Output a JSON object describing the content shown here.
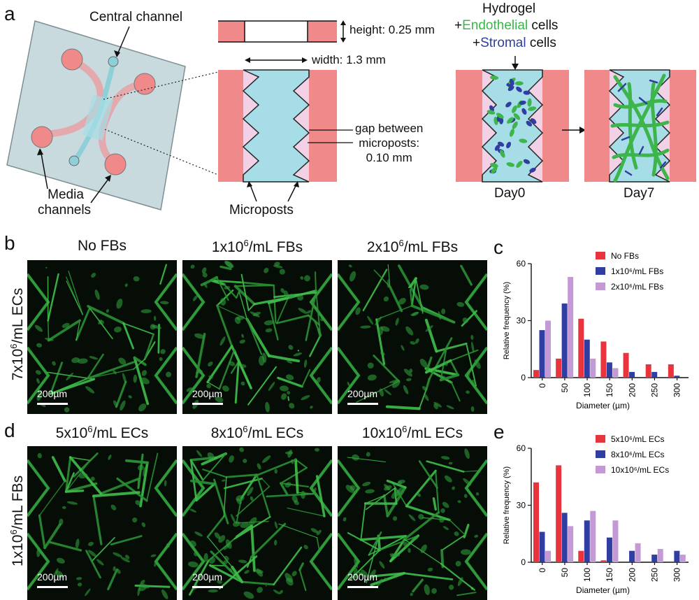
{
  "panel_a": {
    "letter": "a",
    "central_channel": "Central channel",
    "media_channels_line1": "Media",
    "media_channels_line2": "channels",
    "height": "height: 0.25 mm",
    "width": "width: 1.3 mm",
    "gap_line1": "gap between",
    "gap_line2": "microposts:",
    "gap_line3": "0.10 mm",
    "microposts": "Microposts",
    "hydrogel": "Hydrogel",
    "plus": "+",
    "endothelial": "Endothelial",
    "cells": " cells",
    "stromal": "Stromal",
    "day0": "Day0",
    "day7": "Day7",
    "colors": {
      "channel_red": "#f08a8a",
      "gel_blue": "#a6dde6",
      "post_pink": "#f2d0e6",
      "endothelial_green": "#3cb54a",
      "stromal_blue": "#2f3ea0"
    }
  },
  "panel_b": {
    "letter": "b",
    "columns": [
      "No FBs",
      "1x10",
      "2x10"
    ],
    "col_suffix": "/mL FBs",
    "exp": "6",
    "row_label_pre": "7x10",
    "row_label_post": "/mL ECs",
    "scale": "200µm"
  },
  "panel_d": {
    "letter": "d",
    "columns": [
      "5x10",
      "8x10",
      "10x10"
    ],
    "col_suffix": "/mL ECs",
    "exp": "6",
    "row_label_pre": "1x10",
    "row_label_post": "/mL FBs",
    "scale": "200µm"
  },
  "chart_data": [
    {
      "panel": "c",
      "type": "bar",
      "categories": [
        "0",
        "50",
        "100",
        "150",
        "200",
        "250",
        "300"
      ],
      "series": [
        {
          "name": "No FBs",
          "color": "#e8343d",
          "values": [
            4,
            10,
            31,
            19,
            13,
            7,
            7
          ]
        },
        {
          "name": "1x10⁶/mL FBs",
          "color": "#2f3ea0",
          "values": [
            25,
            39,
            20,
            8,
            3,
            3,
            1
          ]
        },
        {
          "name": "2x10⁶/mL FBs",
          "color": "#c49ad6",
          "values": [
            30,
            53,
            10,
            5,
            0,
            0,
            0
          ]
        }
      ],
      "xlabel": "Diameter (µm)",
      "ylabel": "Relative frequency (%)",
      "yticks": [
        "0",
        "30",
        "60"
      ],
      "ylim": [
        0,
        60
      ],
      "legend": "top-right"
    },
    {
      "panel": "e",
      "type": "bar",
      "categories": [
        "0",
        "50",
        "100",
        "150",
        "200",
        "250",
        "300"
      ],
      "series": [
        {
          "name": "5x10⁶/mL ECs",
          "color": "#e8343d",
          "values": [
            42,
            51,
            6,
            1,
            0,
            0,
            0
          ]
        },
        {
          "name": "8x10⁶/mL ECs",
          "color": "#2f3ea0",
          "values": [
            16,
            26,
            22,
            13,
            6,
            4,
            6
          ]
        },
        {
          "name": "10x10⁶/mL ECs",
          "color": "#c49ad6",
          "values": [
            6,
            19,
            27,
            22,
            10,
            7,
            4
          ]
        }
      ],
      "xlabel": "Diameter (µm)",
      "ylabel": "Relative frequency (%)",
      "yticks": [
        "0",
        "30",
        "60"
      ],
      "ylim": [
        0,
        60
      ],
      "legend": "top-right"
    }
  ]
}
